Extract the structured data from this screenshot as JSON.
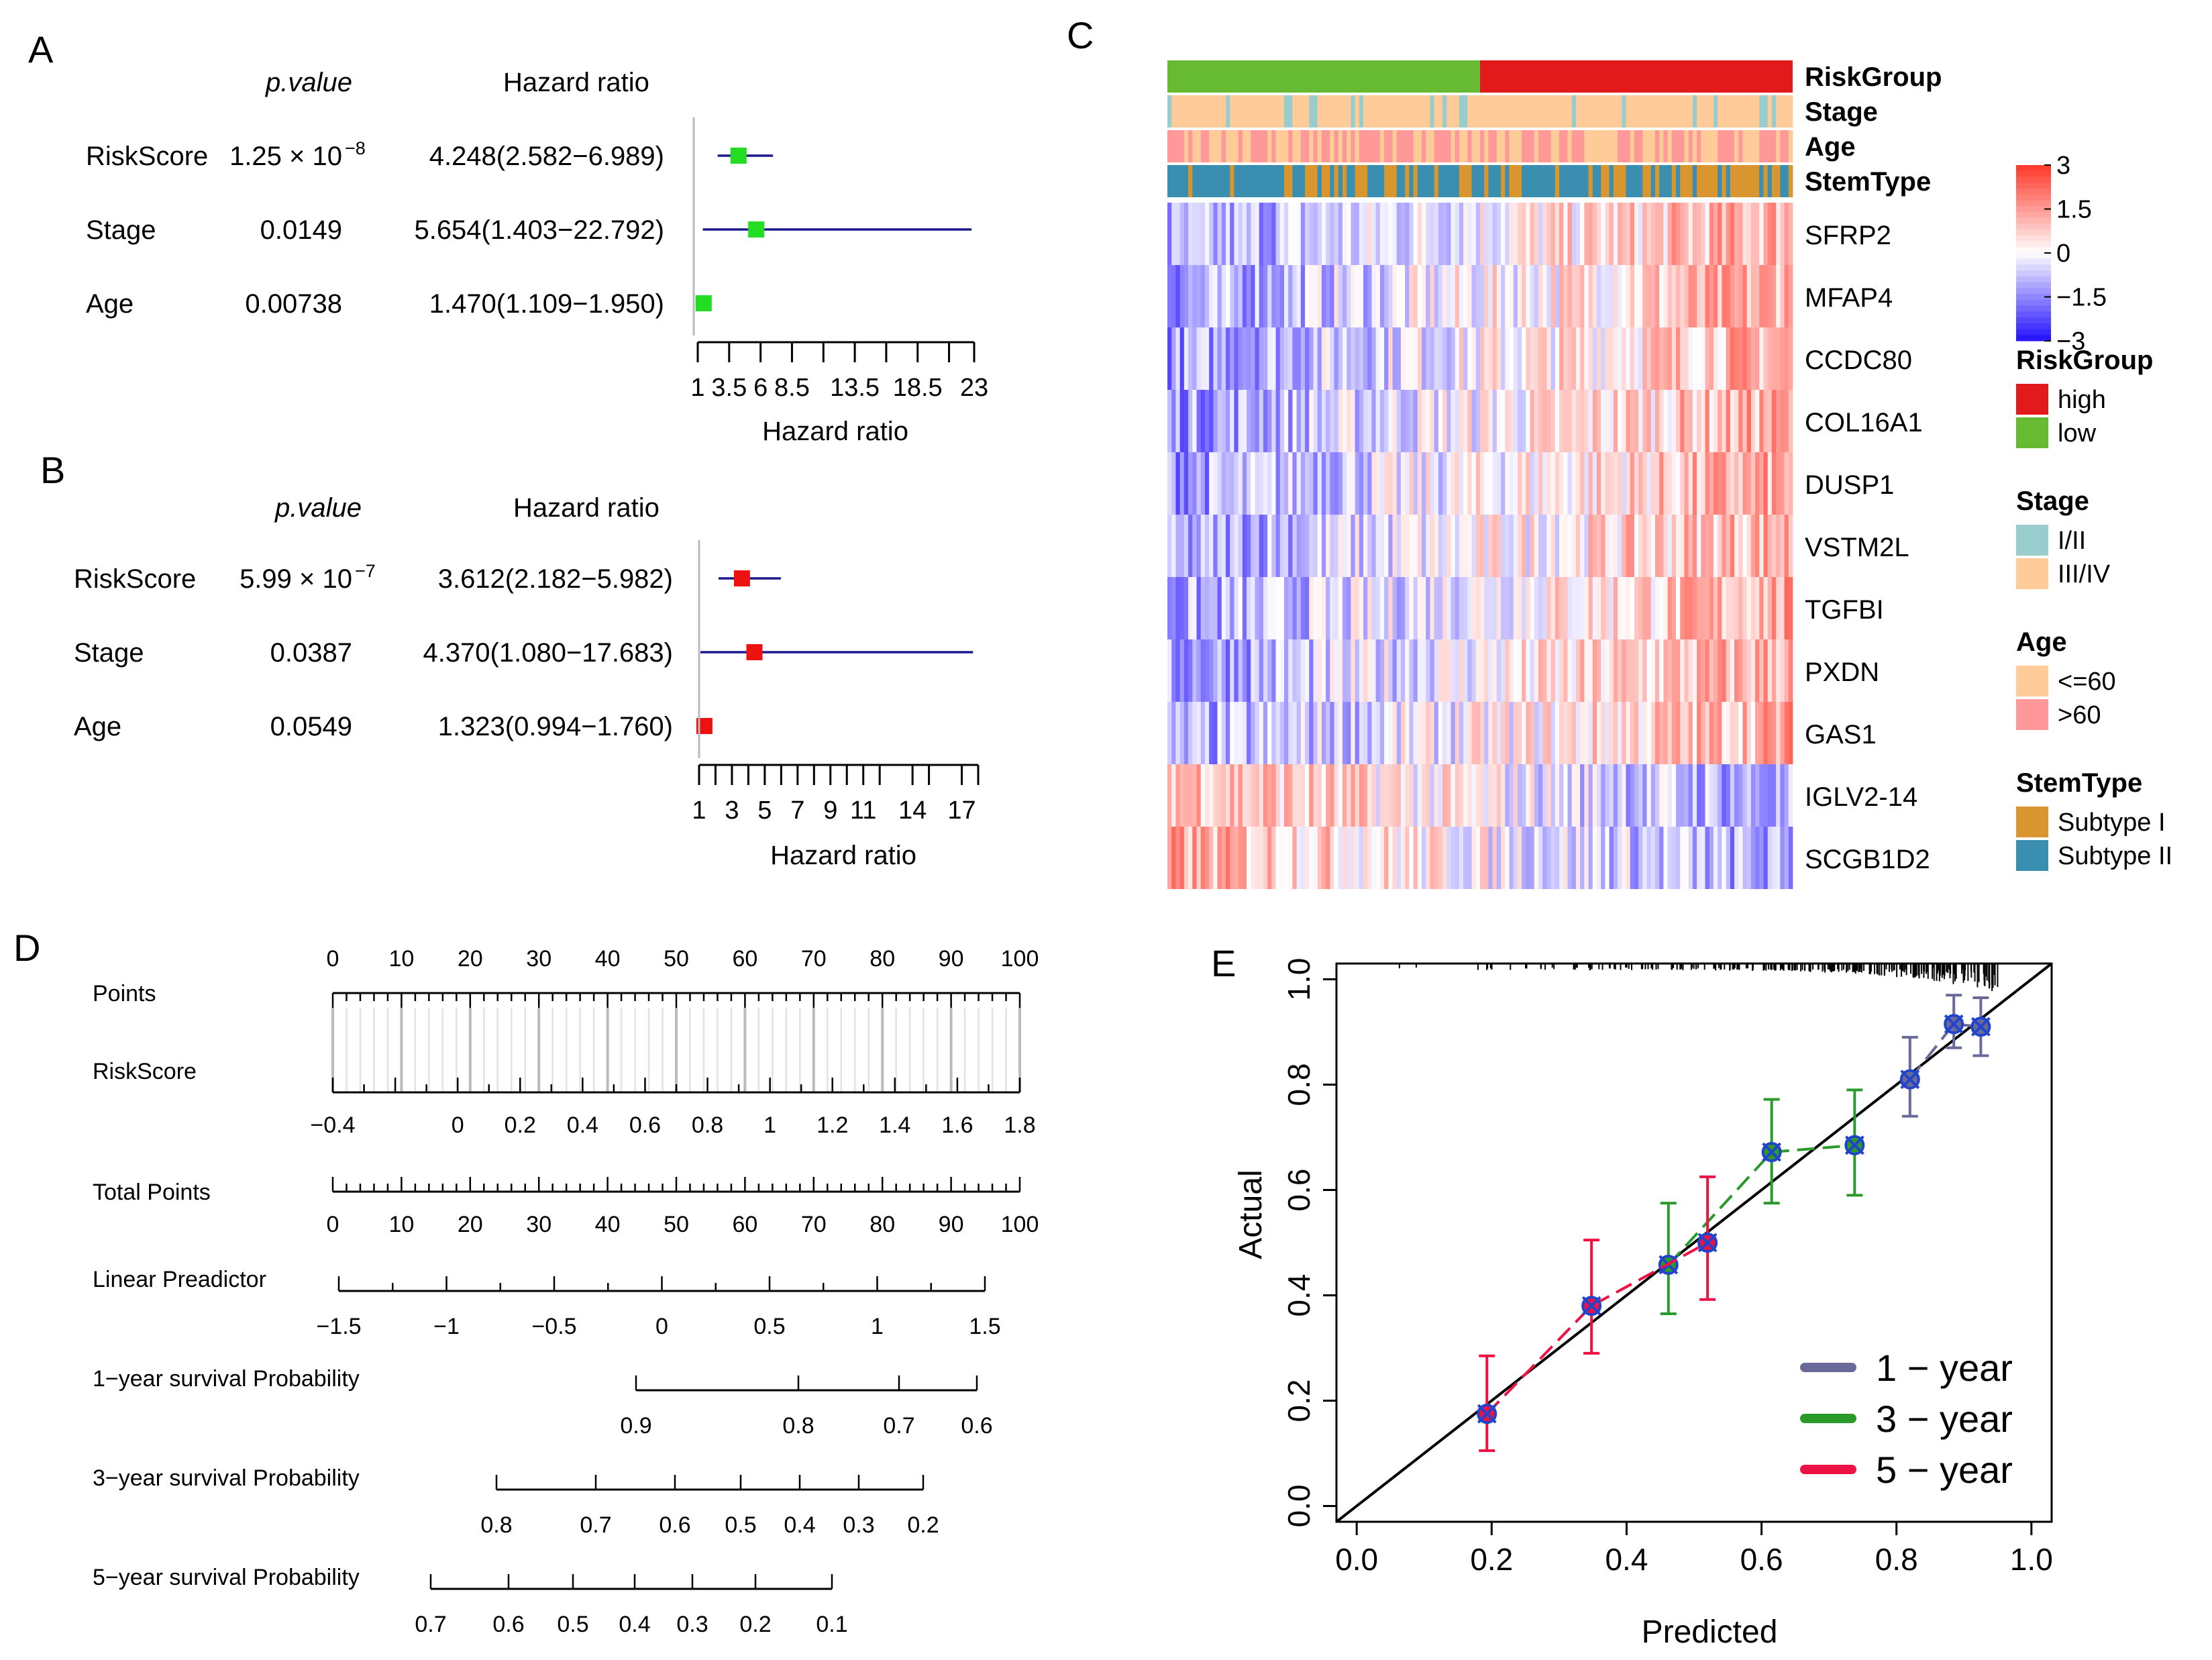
{
  "colors": {
    "green": "#22dd22",
    "red": "#ee1111",
    "navy": "#1a1a8c",
    "risk_high": "#e31a1c",
    "risk_low": "#66bb33",
    "stage_early": "#99cccc",
    "stage_late": "#ffcc99",
    "age_young": "#ffcc99",
    "age_old": "#ff9999",
    "subtype1": "#d9952e",
    "subtype2": "#3a8fb0",
    "cal_1y": "#6a6a9a",
    "cal_3y": "#2a9a2a",
    "cal_5y": "#ee1144",
    "cal_marker": "#2244cc"
  },
  "chart_data": [
    {
      "panel": "A",
      "type": "forest",
      "col_p_label": "p.value",
      "col_hr_label": "Hazard ratio",
      "xlabel": "Hazard ratio",
      "xlim": [
        1,
        23
      ],
      "ticks": [
        1,
        3.5,
        6,
        8.5,
        13.5,
        18.5,
        23
      ],
      "tick_labels": [
        "1",
        "3.5",
        "6",
        "8.5",
        "13.5",
        "18.5",
        "23"
      ],
      "minor_ticks": [
        1,
        3.5,
        6,
        8.5,
        11,
        13.5,
        16,
        18.5,
        21,
        23
      ],
      "rows": [
        {
          "name": "RiskScore",
          "p": "1.25 × 10",
          "p_exp": "−8",
          "hr_text": "4.248(2.582−6.989)",
          "hr": 4.248,
          "lo": 2.582,
          "hi": 6.989
        },
        {
          "name": "Stage",
          "p": "0.0149",
          "p_exp": "",
          "hr_text": "5.654(1.403−22.792)",
          "hr": 5.654,
          "lo": 1.403,
          "hi": 22.792
        },
        {
          "name": "Age",
          "p": "0.00738",
          "p_exp": "",
          "hr_text": "1.470(1.109−1.950)",
          "hr": 1.47,
          "lo": 1.109,
          "hi": 1.95
        }
      ]
    },
    {
      "panel": "B",
      "type": "forest",
      "col_p_label": "p.value",
      "col_hr_label": "Hazard ratio",
      "xlabel": "Hazard ratio",
      "xlim": [
        1,
        18
      ],
      "ticks": [
        1,
        3,
        5,
        7,
        9,
        11,
        14,
        17
      ],
      "tick_labels": [
        "1",
        "3",
        "5",
        "7",
        "9",
        "11",
        "14",
        "17"
      ],
      "minor_ticks": [
        1,
        2,
        3,
        4,
        5,
        6,
        7,
        8,
        9,
        10,
        11,
        12,
        14,
        15,
        17,
        18
      ],
      "rows": [
        {
          "name": "RiskScore",
          "p": "5.99 × 10",
          "p_exp": "−7",
          "hr_text": "3.612(2.182−5.982)",
          "hr": 3.612,
          "lo": 2.182,
          "hi": 5.982
        },
        {
          "name": "Stage",
          "p": "0.0387",
          "p_exp": "",
          "hr_text": "4.370(1.080−17.683)",
          "hr": 4.37,
          "lo": 1.08,
          "hi": 17.683
        },
        {
          "name": "Age",
          "p": "0.0549",
          "p_exp": "",
          "hr_text": "1.323(0.994−1.760)",
          "hr": 1.323,
          "lo": 0.994,
          "hi": 1.76
        }
      ]
    },
    {
      "panel": "C",
      "type": "heatmap",
      "annotation_rows": [
        "RiskGroup",
        "Stage",
        "Age",
        "StemType"
      ],
      "genes": [
        "SFRP2",
        "MFAP4",
        "CCDC80",
        "COL16A1",
        "DUSP1",
        "VSTM2L",
        "TGFBI",
        "PXDN",
        "GAS1",
        "IGLV2-14",
        "SCGB1D2"
      ],
      "gene_trend": [
        1,
        1,
        1,
        1,
        1,
        1,
        1,
        1,
        1,
        -1,
        -1
      ],
      "low_fraction": 0.5,
      "scale_ticks": [
        "3",
        "1.5",
        "0",
        "−1.5",
        "−3"
      ],
      "scale_range": [
        -3,
        3
      ],
      "legends": [
        {
          "title": "RiskGroup",
          "items": [
            {
              "label": "high",
              "color": "#e31a1c"
            },
            {
              "label": "low",
              "color": "#66bb33"
            }
          ]
        },
        {
          "title": "Stage",
          "items": [
            {
              "label": "I/II",
              "color": "#99cccc"
            },
            {
              "label": "III/IV",
              "color": "#ffcc99"
            }
          ]
        },
        {
          "title": "Age",
          "items": [
            {
              "label": "<=60",
              "color": "#ffcc99"
            },
            {
              "label": ">60",
              "color": "#ff9999"
            }
          ]
        },
        {
          "title": "StemType",
          "items": [
            {
              "label": "Subtype I",
              "color": "#d9952e"
            },
            {
              "label": "Subtype II",
              "color": "#3a8fb0"
            }
          ]
        }
      ]
    },
    {
      "panel": "D",
      "type": "nomogram",
      "axes": [
        {
          "name": "Points",
          "range": [
            0,
            100
          ],
          "labels": [
            {
              "v": 0,
              "t": "0"
            },
            {
              "v": 10,
              "t": "10"
            },
            {
              "v": 20,
              "t": "20"
            },
            {
              "v": 30,
              "t": "30"
            },
            {
              "v": 40,
              "t": "40"
            },
            {
              "v": 50,
              "t": "50"
            },
            {
              "v": 60,
              "t": "60"
            },
            {
              "v": 70,
              "t": "70"
            },
            {
              "v": 80,
              "t": "80"
            },
            {
              "v": 90,
              "t": "90"
            },
            {
              "v": 100,
              "t": "100"
            }
          ]
        },
        {
          "name": "RiskScore",
          "range": [
            -0.4,
            1.8
          ],
          "labels": [
            {
              "v": -0.4,
              "t": "−0.4"
            },
            {
              "v": 0,
              "t": "0"
            },
            {
              "v": 0.2,
              "t": "0.2"
            },
            {
              "v": 0.4,
              "t": "0.4"
            },
            {
              "v": 0.6,
              "t": "0.6"
            },
            {
              "v": 0.8,
              "t": "0.8"
            },
            {
              "v": 1,
              "t": "1"
            },
            {
              "v": 1.2,
              "t": "1.2"
            },
            {
              "v": 1.4,
              "t": "1.4"
            },
            {
              "v": 1.6,
              "t": "1.6"
            },
            {
              "v": 1.8,
              "t": "1.8"
            }
          ]
        },
        {
          "name": "Total Points",
          "range": [
            0,
            100
          ],
          "labels": [
            {
              "v": 0,
              "t": "0"
            },
            {
              "v": 10,
              "t": "10"
            },
            {
              "v": 20,
              "t": "20"
            },
            {
              "v": 30,
              "t": "30"
            },
            {
              "v": 40,
              "t": "40"
            },
            {
              "v": 50,
              "t": "50"
            },
            {
              "v": 60,
              "t": "60"
            },
            {
              "v": 70,
              "t": "70"
            },
            {
              "v": 80,
              "t": "80"
            },
            {
              "v": 90,
              "t": "90"
            },
            {
              "v": 100,
              "t": "100"
            }
          ]
        },
        {
          "name": "Linear Preadictor",
          "range": [
            -1.5,
            1.5
          ],
          "labels": [
            {
              "v": -1.5,
              "t": "−1.5"
            },
            {
              "v": -1,
              "t": "−1"
            },
            {
              "v": -0.5,
              "t": "−0.5"
            },
            {
              "v": 0,
              "t": "0"
            },
            {
              "v": 0.5,
              "t": "0.5"
            },
            {
              "v": 1,
              "t": "1"
            },
            {
              "v": 1.5,
              "t": "1.5"
            }
          ]
        },
        {
          "name": "1−year survival Probability",
          "labels": [
            {
              "t": "0.9"
            },
            {
              "t": "0.8"
            },
            {
              "t": "0.7"
            },
            {
              "t": "0.6"
            }
          ]
        },
        {
          "name": "3−year survival Probability",
          "labels": [
            {
              "t": "0.8"
            },
            {
              "t": "0.7"
            },
            {
              "t": "0.6"
            },
            {
              "t": "0.5"
            },
            {
              "t": "0.4"
            },
            {
              "t": "0.3"
            },
            {
              "t": "0.2"
            }
          ]
        },
        {
          "name": "5−year survival Probability",
          "labels": [
            {
              "t": "0.7"
            },
            {
              "t": "0.6"
            },
            {
              "t": "0.5"
            },
            {
              "t": "0.4"
            },
            {
              "t": "0.3"
            },
            {
              "t": "0.2"
            },
            {
              "t": "0.1"
            }
          ]
        }
      ]
    },
    {
      "panel": "E",
      "type": "calibration",
      "xlabel": "Predicted",
      "ylabel": "Actual",
      "xlim": [
        -0.03,
        1.03
      ],
      "ylim": [
        -0.03,
        1.03
      ],
      "x_ticks": [
        "0.0",
        "0.2",
        "0.4",
        "0.6",
        "0.8",
        "1.0"
      ],
      "y_ticks": [
        "0.0",
        "0.2",
        "0.4",
        "0.6",
        "0.8",
        "1.0"
      ],
      "series": [
        {
          "name": "1 − year",
          "color": "#6a6a9a",
          "points": [
            {
              "x": 0.82,
              "y": 0.81,
              "lo": 0.74,
              "hi": 0.89
            },
            {
              "x": 0.885,
              "y": 0.915,
              "lo": 0.87,
              "hi": 0.97
            },
            {
              "x": 0.925,
              "y": 0.91,
              "lo": 0.855,
              "hi": 0.965
            }
          ]
        },
        {
          "name": "3 − year",
          "color": "#2a9a2a",
          "points": [
            {
              "x": 0.462,
              "y": 0.458,
              "lo": 0.365,
              "hi": 0.575
            },
            {
              "x": 0.615,
              "y": 0.672,
              "lo": 0.575,
              "hi": 0.772
            },
            {
              "x": 0.738,
              "y": 0.685,
              "lo": 0.59,
              "hi": 0.79
            }
          ]
        },
        {
          "name": "5 − year",
          "color": "#ee1144",
          "points": [
            {
              "x": 0.193,
              "y": 0.175,
              "lo": 0.105,
              "hi": 0.285
            },
            {
              "x": 0.348,
              "y": 0.38,
              "lo": 0.29,
              "hi": 0.505
            },
            {
              "x": 0.52,
              "y": 0.5,
              "lo": 0.392,
              "hi": 0.625
            }
          ]
        }
      ]
    }
  ],
  "panel_labels": [
    "A",
    "B",
    "C",
    "D",
    "E"
  ]
}
